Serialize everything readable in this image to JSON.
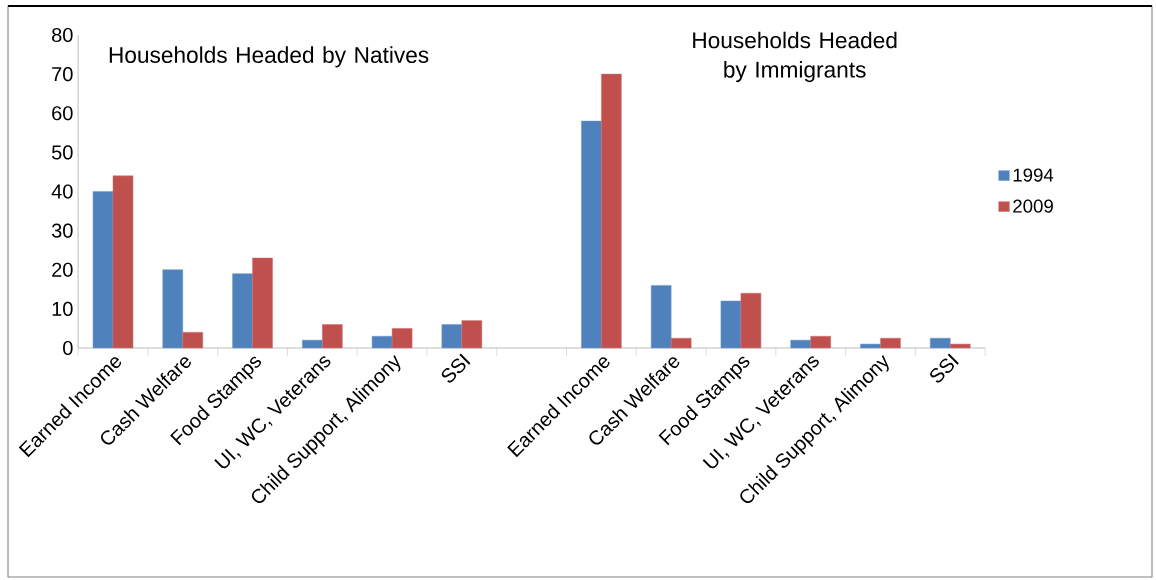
{
  "chart_data": {
    "type": "bar",
    "categories": [
      "Earned Income",
      "Cash Welfare",
      "Food Stamps",
      "UI, WC, Veterans",
      "Child Support, Alimony",
      "SSI",
      null,
      "Earned Income",
      "Cash Welfare",
      "Food Stamps",
      "UI, WC, Veterans",
      "Child Support, Alimony",
      "SSI"
    ],
    "series": [
      {
        "name": "1994",
        "color": "#4f81bd",
        "values": [
          40,
          20,
          19,
          2,
          3,
          6,
          null,
          58,
          16,
          12,
          2,
          1,
          2.5
        ]
      },
      {
        "name": "2009",
        "color": "#c0504d",
        "values": [
          44,
          4,
          23,
          6,
          5,
          7,
          null,
          70,
          2.5,
          14,
          3,
          2.5,
          1
        ]
      }
    ],
    "ylim": [
      0,
      80
    ],
    "yticks": [
      0,
      10,
      20,
      30,
      40,
      50,
      60,
      70,
      80
    ],
    "annotations": [
      "Households Headed by Natives",
      "Households Headed by Immigrants"
    ],
    "legend": "right",
    "grid": false
  }
}
